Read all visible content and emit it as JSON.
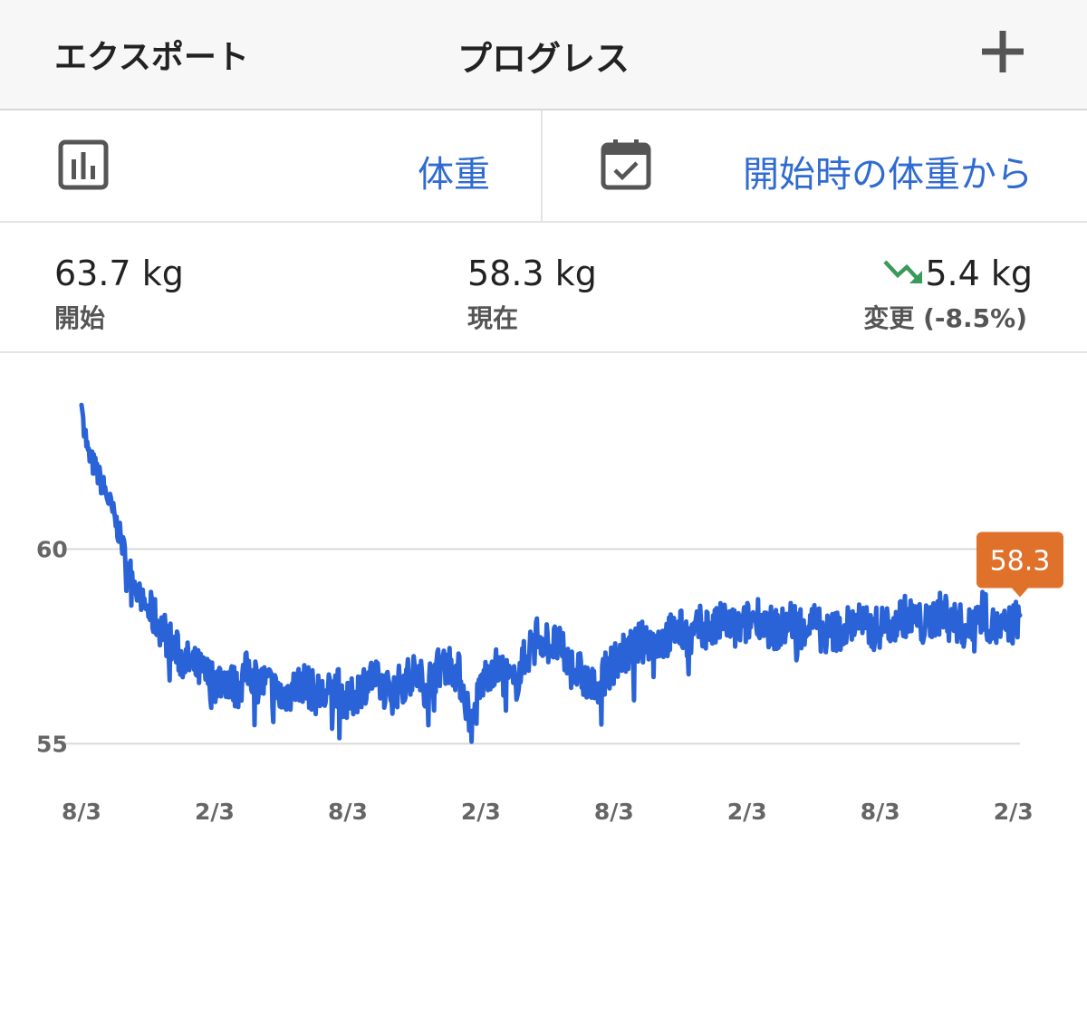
{
  "header": {
    "export_label": "エクスポート",
    "title": "プログレス",
    "add_icon": "plus-icon"
  },
  "selectors": {
    "metric": {
      "icon": "bar-chart-icon",
      "label": "体重"
    },
    "range": {
      "icon": "calendar-check-icon",
      "label": "開始時の体重から"
    }
  },
  "stats": {
    "start": {
      "value": "63.7 kg",
      "label": "開始"
    },
    "current": {
      "value": "58.3 kg",
      "label": "現在"
    },
    "change": {
      "value": "5.4 kg",
      "label": "変更 (-8.5%)",
      "trend_icon": "trend-down-icon",
      "trend_color": "#3a9a5a"
    }
  },
  "colors": {
    "accent": "#2f6bd0",
    "line": "#2a62d8",
    "badge": "#e0712b",
    "grid": "#d9d9d9"
  },
  "chart_data": {
    "type": "line",
    "title": "",
    "xlabel": "",
    "ylabel": "",
    "ylim": [
      54.8,
      64.1
    ],
    "y_ticks": [
      55,
      60
    ],
    "x_ticks": [
      "8/3",
      "2/3",
      "8/3",
      "2/3",
      "8/3",
      "2/3",
      "8/3",
      "2/3"
    ],
    "x_unit": "months since first 8/3 tick",
    "xlim": [
      0,
      42.3
    ],
    "last_value_label": "58.3",
    "series": [
      {
        "x": [
          0,
          0.3,
          0.6,
          0.9,
          1.2,
          1.6,
          2.0,
          2.4,
          2.8,
          3.2,
          3.6,
          4.0,
          4.5,
          5.0,
          5.5,
          6.0,
          6.5,
          7.0,
          7.5,
          8.0,
          8.5,
          9.0,
          9.5,
          10.0,
          10.5,
          11.0,
          11.5,
          12.0,
          12.5,
          13.0,
          13.5,
          14.0,
          14.5,
          15.0,
          15.5,
          16.0,
          16.5,
          17.0,
          17.3,
          17.6,
          18.0,
          18.5,
          19.0,
          19.5,
          20.0,
          20.5,
          21.0,
          21.5,
          22.0,
          22.5,
          23.0,
          23.5,
          24.0,
          24.5,
          25.0,
          25.5,
          26.0,
          26.5,
          27.0,
          27.5,
          28.0,
          28.5,
          29.0,
          29.5,
          30.0,
          30.5,
          31.0,
          31.5,
          32.0,
          32.5,
          33.0,
          33.5,
          34.0,
          34.5,
          35.0,
          35.5,
          36.0,
          36.5,
          37.0,
          37.5,
          38.0,
          38.5,
          39.0,
          39.5,
          40.0,
          40.5,
          41.0,
          41.5,
          42.0,
          42.3
        ],
        "y": [
          63.7,
          62.4,
          62.1,
          61.7,
          61.3,
          60.6,
          59.8,
          59.1,
          58.6,
          58.3,
          58.0,
          57.6,
          57.2,
          57.0,
          56.8,
          56.6,
          56.7,
          56.4,
          56.9,
          56.6,
          56.5,
          56.2,
          56.4,
          56.6,
          56.3,
          56.2,
          56.5,
          56.0,
          56.4,
          56.7,
          56.5,
          56.3,
          56.6,
          56.8,
          56.5,
          56.9,
          57.1,
          56.8,
          56.2,
          55.4,
          56.5,
          57.0,
          56.8,
          56.5,
          57.2,
          57.8,
          57.6,
          57.5,
          57.0,
          56.8,
          56.4,
          56.7,
          57.1,
          57.3,
          57.5,
          57.7,
          57.6,
          57.8,
          57.9,
          57.7,
          58.1,
          57.9,
          58.2,
          57.9,
          58.1,
          58.3,
          58.0,
          57.9,
          58.2,
          58.0,
          58.1,
          57.8,
          57.9,
          58.0,
          58.2,
          57.9,
          58.0,
          58.1,
          58.3,
          58.2,
          58.0,
          58.3,
          58.4,
          58.1,
          57.9,
          58.6,
          58.0,
          57.9,
          58.1,
          58.3
        ],
        "noise_seed": 7,
        "noise_amplitude": 0.55
      }
    ]
  }
}
